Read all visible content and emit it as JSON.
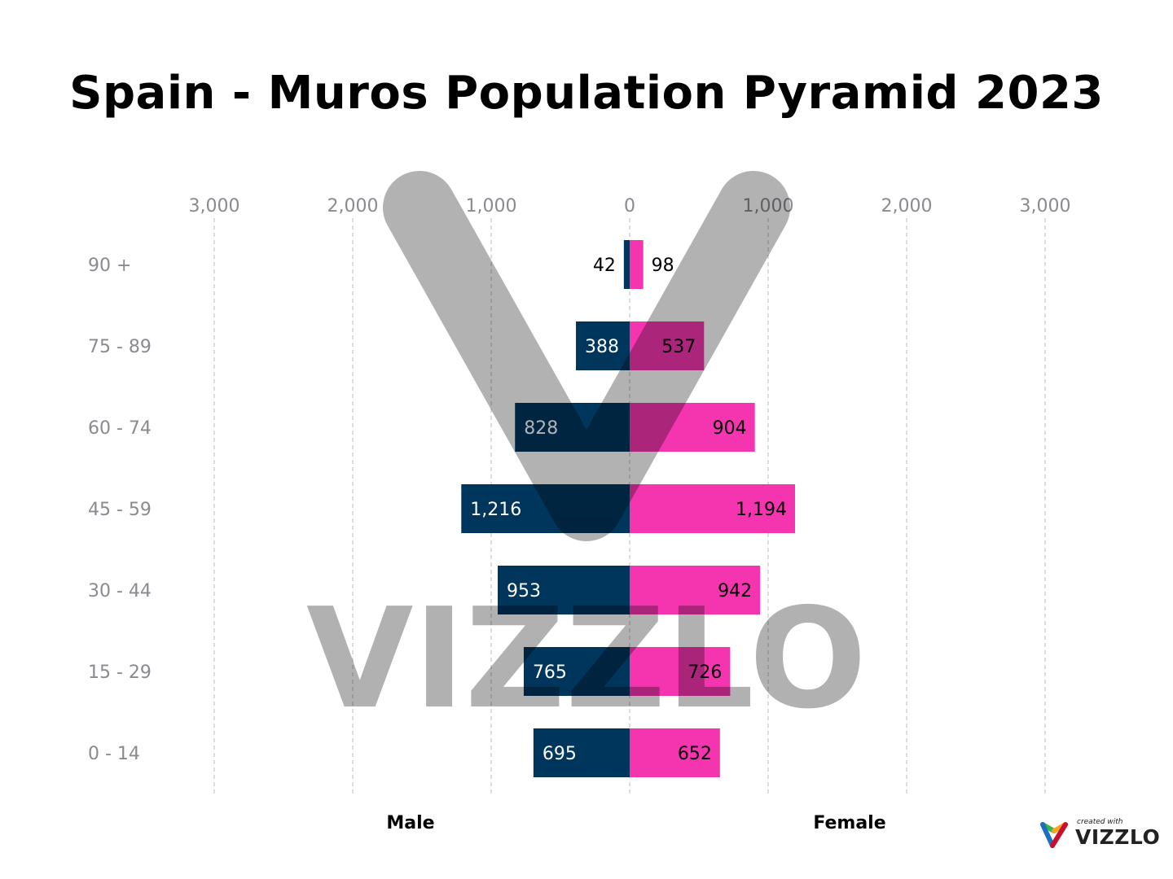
{
  "chart_data": {
    "type": "bar",
    "orientation": "horizontal-pyramid",
    "title": "Spain - Muros Population Pyramid 2023",
    "categories": [
      "90 +",
      "75 - 89",
      "60 - 74",
      "45 - 59",
      "30 - 44",
      "15 - 29",
      "0 - 14"
    ],
    "series": [
      {
        "name": "Male",
        "color": "#00355c",
        "values": [
          42,
          388,
          828,
          1216,
          953,
          765,
          695
        ],
        "labels": [
          "42",
          "388",
          "828",
          "1,216",
          "953",
          "765",
          "695"
        ]
      },
      {
        "name": "Female",
        "color": "#f535b0",
        "values": [
          98,
          537,
          904,
          1194,
          942,
          726,
          652
        ],
        "labels": [
          "98",
          "537",
          "904",
          "1,194",
          "942",
          "726",
          "652"
        ]
      }
    ],
    "xlim": [
      -3000,
      3000
    ],
    "xticks": [
      -3000,
      -2000,
      -1000,
      0,
      1000,
      2000,
      3000
    ],
    "xtick_labels": [
      "3,000",
      "2,000",
      "1,000",
      "0",
      "1,000",
      "2,000",
      "3,000"
    ],
    "grid": true,
    "axis_position": "top"
  },
  "watermark": "VIZZLO",
  "logo": {
    "small": "created with",
    "big": "VIZZLO"
  }
}
